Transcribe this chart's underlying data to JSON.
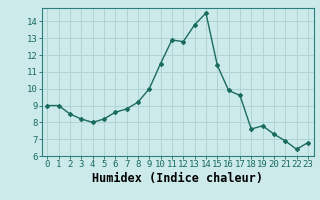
{
  "x": [
    0,
    1,
    2,
    3,
    4,
    5,
    6,
    7,
    8,
    9,
    10,
    11,
    12,
    13,
    14,
    15,
    16,
    17,
    18,
    19,
    20,
    21,
    22,
    23
  ],
  "y": [
    9.0,
    9.0,
    8.5,
    8.2,
    8.0,
    8.2,
    8.6,
    8.8,
    9.2,
    10.0,
    11.5,
    12.9,
    12.8,
    13.8,
    14.5,
    11.4,
    9.9,
    9.6,
    7.6,
    7.8,
    7.3,
    6.9,
    6.4,
    6.8
  ],
  "line_color": "#1a6b60",
  "marker": "D",
  "marker_size": 2.0,
  "bg_color": "#cceaea",
  "grid_color": "#b0d4d4",
  "xlabel": "Humidex (Indice chaleur)",
  "xlim": [
    -0.5,
    23.5
  ],
  "ylim": [
    6,
    14.8
  ],
  "yticks": [
    6,
    7,
    8,
    9,
    10,
    11,
    12,
    13,
    14
  ],
  "xticks": [
    0,
    1,
    2,
    3,
    4,
    5,
    6,
    7,
    8,
    9,
    10,
    11,
    12,
    13,
    14,
    15,
    16,
    17,
    18,
    19,
    20,
    21,
    22,
    23
  ],
  "tick_label_fontsize": 6.5,
  "xlabel_fontsize": 8.5,
  "line_width": 1.0
}
